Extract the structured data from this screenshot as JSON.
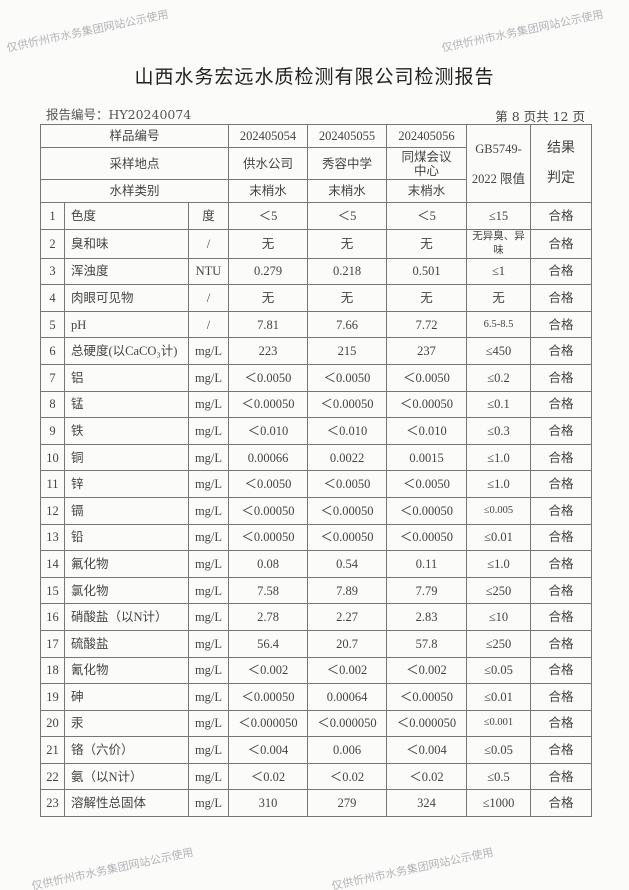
{
  "title": "山西水务宏远水质检测有限公司检测报告",
  "report_no": "报告编号：HY20240074",
  "page_no": "第 8 页共 12 页",
  "watermark": "仅供忻州市水务集团网站公示使用",
  "header": {
    "sample_no_label": "样品编号",
    "samples": [
      "202405054",
      "202405055",
      "202405056"
    ],
    "location_label": "采样地点",
    "locations": [
      "供水公司",
      "秀容中学",
      "同煤会议中心"
    ],
    "type_label": "水样类别",
    "types": [
      "末梢水",
      "末梢水",
      "末梢水"
    ],
    "limit_label": "GB5749-2022 限值",
    "result_label": "结果判定"
  },
  "rows": [
    {
      "no": "1",
      "name": "色度",
      "unit": "度",
      "v": [
        "＜5",
        "＜5",
        "＜5"
      ],
      "limit": "≤15",
      "result": "合格"
    },
    {
      "no": "2",
      "name": "臭和味",
      "unit": "/",
      "v": [
        "无",
        "无",
        "无"
      ],
      "limit": "无异臭、异味",
      "result": "合格"
    },
    {
      "no": "3",
      "name": "浑浊度",
      "unit": "NTU",
      "v": [
        "0.279",
        "0.218",
        "0.501"
      ],
      "limit": "≤1",
      "result": "合格"
    },
    {
      "no": "4",
      "name": "肉眼可见物",
      "unit": "/",
      "v": [
        "无",
        "无",
        "无"
      ],
      "limit": "无",
      "result": "合格"
    },
    {
      "no": "5",
      "name": "pH",
      "unit": "/",
      "v": [
        "7.81",
        "7.66",
        "7.72"
      ],
      "limit": "6.5-8.5",
      "result": "合格"
    },
    {
      "no": "6",
      "name": "总硬度(以CaCO₃计)",
      "unit": "mg/L",
      "v": [
        "223",
        "215",
        "237"
      ],
      "limit": "≤450",
      "result": "合格"
    },
    {
      "no": "7",
      "name": "铝",
      "unit": "mg/L",
      "v": [
        "＜0.0050",
        "＜0.0050",
        "＜0.0050"
      ],
      "limit": "≤0.2",
      "result": "合格"
    },
    {
      "no": "8",
      "name": "锰",
      "unit": "mg/L",
      "v": [
        "＜0.00050",
        "＜0.00050",
        "＜0.00050"
      ],
      "limit": "≤0.1",
      "result": "合格"
    },
    {
      "no": "9",
      "name": "铁",
      "unit": "mg/L",
      "v": [
        "＜0.010",
        "＜0.010",
        "＜0.010"
      ],
      "limit": "≤0.3",
      "result": "合格"
    },
    {
      "no": "10",
      "name": "铜",
      "unit": "mg/L",
      "v": [
        "0.00066",
        "0.0022",
        "0.0015"
      ],
      "limit": "≤1.0",
      "result": "合格"
    },
    {
      "no": "11",
      "name": "锌",
      "unit": "mg/L",
      "v": [
        "＜0.0050",
        "＜0.0050",
        "＜0.0050"
      ],
      "limit": "≤1.0",
      "result": "合格"
    },
    {
      "no": "12",
      "name": "镉",
      "unit": "mg/L",
      "v": [
        "＜0.00050",
        "＜0.00050",
        "＜0.00050"
      ],
      "limit": "≤0.005",
      "result": "合格"
    },
    {
      "no": "13",
      "name": "铅",
      "unit": "mg/L",
      "v": [
        "＜0.00050",
        "＜0.00050",
        "＜0.00050"
      ],
      "limit": "≤0.01",
      "result": "合格"
    },
    {
      "no": "14",
      "name": "氟化物",
      "unit": "mg/L",
      "v": [
        "0.08",
        "0.54",
        "0.11"
      ],
      "limit": "≤1.0",
      "result": "合格"
    },
    {
      "no": "15",
      "name": "氯化物",
      "unit": "mg/L",
      "v": [
        "7.58",
        "7.89",
        "7.79"
      ],
      "limit": "≤250",
      "result": "合格"
    },
    {
      "no": "16",
      "name": "硝酸盐（以N计）",
      "unit": "mg/L",
      "v": [
        "2.78",
        "2.27",
        "2.83"
      ],
      "limit": "≤10",
      "result": "合格"
    },
    {
      "no": "17",
      "name": "硫酸盐",
      "unit": "mg/L",
      "v": [
        "56.4",
        "20.7",
        "57.8"
      ],
      "limit": "≤250",
      "result": "合格"
    },
    {
      "no": "18",
      "name": "氰化物",
      "unit": "mg/L",
      "v": [
        "＜0.002",
        "＜0.002",
        "＜0.002"
      ],
      "limit": "≤0.05",
      "result": "合格"
    },
    {
      "no": "19",
      "name": "砷",
      "unit": "mg/L",
      "v": [
        "＜0.00050",
        "0.00064",
        "＜0.00050"
      ],
      "limit": "≤0.01",
      "result": "合格"
    },
    {
      "no": "20",
      "name": "汞",
      "unit": "mg/L",
      "v": [
        "＜0.000050",
        "＜0.000050",
        "＜0.000050"
      ],
      "limit": "≤0.001",
      "result": "合格"
    },
    {
      "no": "21",
      "name": "铬（六价）",
      "unit": "mg/L",
      "v": [
        "＜0.004",
        "0.006",
        "＜0.004"
      ],
      "limit": "≤0.05",
      "result": "合格"
    },
    {
      "no": "22",
      "name": "氨（以N计）",
      "unit": "mg/L",
      "v": [
        "＜0.02",
        "＜0.02",
        "＜0.02"
      ],
      "limit": "≤0.5",
      "result": "合格"
    },
    {
      "no": "23",
      "name": "溶解性总固体",
      "unit": "mg/L",
      "v": [
        "310",
        "279",
        "324"
      ],
      "limit": "≤1000",
      "result": "合格"
    }
  ]
}
